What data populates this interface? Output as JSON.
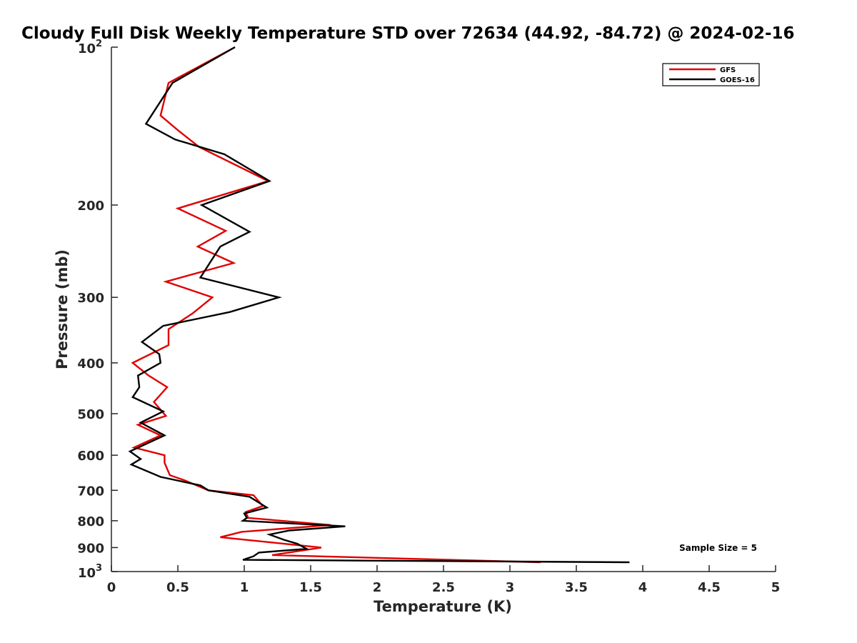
{
  "chart_data": {
    "type": "line",
    "title": "Cloudy Full Disk Weekly Temperature STD over 72634 (44.92, -84.72) @ 2024-02-16",
    "xlabel": "Temperature (K)",
    "ylabel": "Pressure (mb)",
    "xlim": [
      0,
      5
    ],
    "ylim": [
      100,
      1000
    ],
    "y_scale": "log",
    "y_reversed": true,
    "x_ticks": [
      "0",
      "0.5",
      "1",
      "1.5",
      "2",
      "2.5",
      "3",
      "3.5",
      "4",
      "4.5",
      "5"
    ],
    "y_ticks": [
      {
        "value": 100,
        "base": "10",
        "exp": "2"
      },
      {
        "value": 200,
        "label": "200"
      },
      {
        "value": 300,
        "label": "300"
      },
      {
        "value": 400,
        "label": "400"
      },
      {
        "value": 500,
        "label": "500"
      },
      {
        "value": 600,
        "label": "600"
      },
      {
        "value": 700,
        "label": "700"
      },
      {
        "value": 800,
        "label": "800"
      },
      {
        "value": 900,
        "label": "900"
      },
      {
        "value": 1000,
        "base": "10",
        "exp": "3"
      }
    ],
    "grid": false,
    "legend_position": "top-right",
    "annotation": "Sample Size = 5",
    "series": [
      {
        "name": "GFS",
        "color": "#e00000",
        "points": [
          [
            0.93,
            100
          ],
          [
            0.43,
            117
          ],
          [
            0.37,
            135
          ],
          [
            0.5,
            144
          ],
          [
            0.66,
            155
          ],
          [
            1.18,
            180
          ],
          [
            0.5,
            203
          ],
          [
            0.86,
            224
          ],
          [
            0.65,
            240
          ],
          [
            0.92,
            258
          ],
          [
            0.41,
            280
          ],
          [
            0.76,
            300
          ],
          [
            0.61,
            322
          ],
          [
            0.43,
            345
          ],
          [
            0.43,
            370
          ],
          [
            0.16,
            400
          ],
          [
            0.28,
            423
          ],
          [
            0.42,
            445
          ],
          [
            0.32,
            475
          ],
          [
            0.41,
            505
          ],
          [
            0.2,
            525
          ],
          [
            0.37,
            550
          ],
          [
            0.17,
            580
          ],
          [
            0.4,
            600
          ],
          [
            0.4,
            620
          ],
          [
            0.44,
            655
          ],
          [
            0.55,
            670
          ],
          [
            0.73,
            700
          ],
          [
            1.07,
            715
          ],
          [
            1.14,
            750
          ],
          [
            1.01,
            770
          ],
          [
            1.03,
            790
          ],
          [
            1.65,
            815
          ],
          [
            0.98,
            840
          ],
          [
            0.82,
            860
          ],
          [
            1.58,
            900
          ],
          [
            1.21,
            930
          ],
          [
            3.23,
            960
          ]
        ]
      },
      {
        "name": "GOES-16",
        "color": "#000000",
        "points": [
          [
            0.93,
            100
          ],
          [
            0.46,
            117
          ],
          [
            0.26,
            140
          ],
          [
            0.48,
            150
          ],
          [
            0.85,
            160
          ],
          [
            1.19,
            180
          ],
          [
            0.68,
            200
          ],
          [
            1.04,
            225
          ],
          [
            0.82,
            240
          ],
          [
            0.67,
            275
          ],
          [
            1.26,
            300
          ],
          [
            0.89,
            320
          ],
          [
            0.39,
            340
          ],
          [
            0.23,
            365
          ],
          [
            0.36,
            385
          ],
          [
            0.37,
            400
          ],
          [
            0.2,
            423
          ],
          [
            0.21,
            445
          ],
          [
            0.16,
            465
          ],
          [
            0.39,
            495
          ],
          [
            0.22,
            520
          ],
          [
            0.4,
            550
          ],
          [
            0.14,
            590
          ],
          [
            0.22,
            610
          ],
          [
            0.15,
            625
          ],
          [
            0.37,
            660
          ],
          [
            0.67,
            685
          ],
          [
            0.73,
            700
          ],
          [
            1.04,
            720
          ],
          [
            1.17,
            755
          ],
          [
            1.0,
            775
          ],
          [
            1.02,
            790
          ],
          [
            0.99,
            800
          ],
          [
            1.76,
            820
          ],
          [
            1.34,
            835
          ],
          [
            1.19,
            850
          ],
          [
            1.3,
            870
          ],
          [
            1.4,
            885
          ],
          [
            1.47,
            905
          ],
          [
            1.11,
            920
          ],
          [
            1.07,
            935
          ],
          [
            0.99,
            950
          ],
          [
            3.9,
            960
          ]
        ]
      }
    ]
  }
}
